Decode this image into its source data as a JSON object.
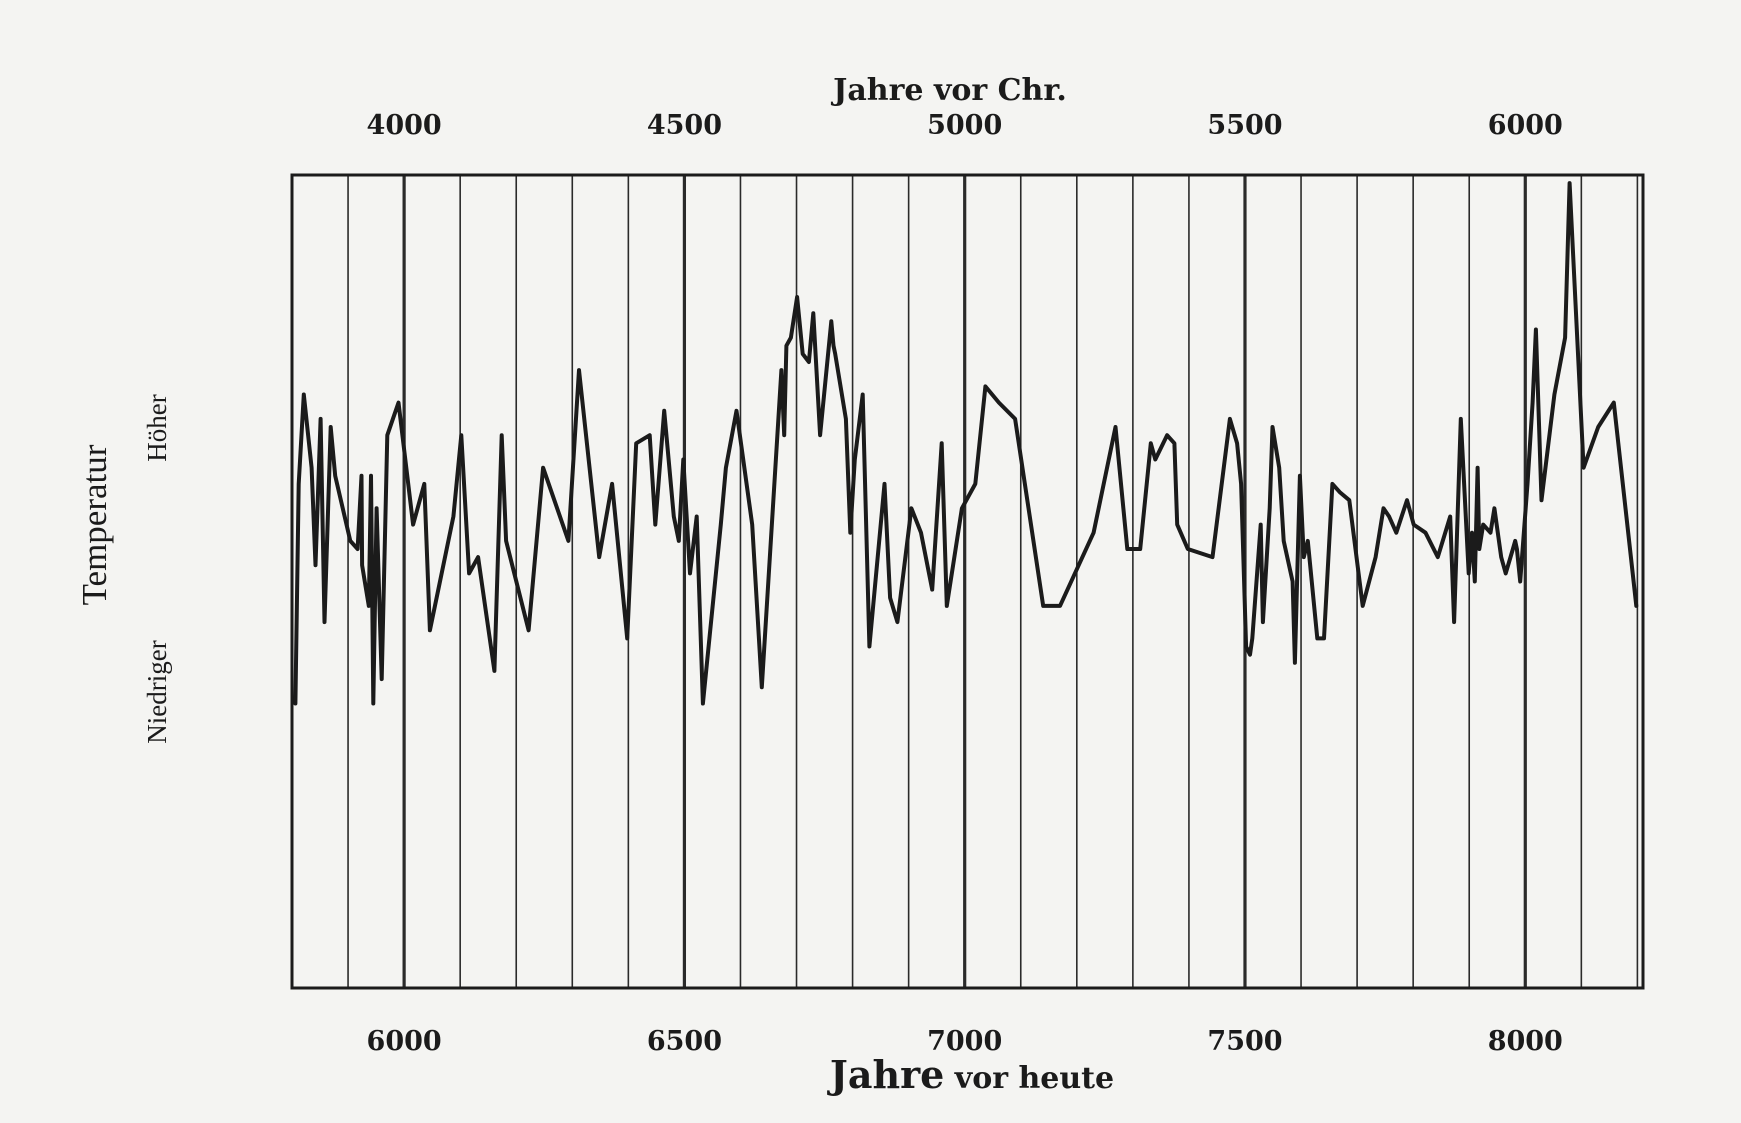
{
  "chart_data": {
    "type": "line",
    "top_axis": {
      "label": "Jahre vor Chr.",
      "ticks": [
        4000,
        4500,
        5000,
        5500,
        6000
      ]
    },
    "bottom_axis": {
      "label_bold": "Jahre",
      "label_rest": " vor heute",
      "ticks": [
        6000,
        6500,
        7000,
        7500,
        8000
      ]
    },
    "y_axis": {
      "label": "Temperatur",
      "low_label": "Niedriger",
      "high_label": "Höher",
      "range": [
        0,
        100
      ]
    },
    "xlim": [
      5800,
      8210
    ],
    "grid": "vertical lines every 100 years, heavier every 500",
    "series": [
      {
        "x": [
          5806,
          5812,
          5821,
          5835,
          5842,
          5851,
          5858,
          5869,
          5877,
          5904,
          5917,
          5924,
          5925,
          5937,
          5941,
          5945,
          5951,
          5960,
          5970,
          5990,
          6016,
          6036,
          6046,
          6088,
          6102,
          6116,
          6132,
          6161,
          6174,
          6182,
          6222,
          6248,
          6293,
          6312,
          6348,
          6371,
          6398,
          6414,
          6438,
          6448,
          6464,
          6481,
          6490,
          6498,
          6510,
          6522,
          6533,
          6565,
          6574,
          6593,
          6621,
          6638,
          6673,
          6678,
          6682,
          6690,
          6701,
          6711,
          6722,
          6730,
          6742,
          6762,
          6766,
          6769,
          6788,
          6796,
          6804,
          6818,
          6830,
          6857,
          6867,
          6880,
          6905,
          6922,
          6942,
          6959,
          6968,
          6995,
          7019,
          7037,
          7061,
          7090,
          7140,
          7170,
          7230,
          7269,
          7290,
          7313,
          7332,
          7340,
          7361,
          7374,
          7379,
          7398,
          7442,
          7473,
          7486,
          7493,
          7502,
          7509,
          7513,
          7528,
          7532,
          7544,
          7549,
          7561,
          7569,
          7585,
          7589,
          7598,
          7605,
          7612,
          7629,
          7641,
          7656,
          7669,
          7686,
          7710,
          7733,
          7747,
          7757,
          7770,
          7789,
          7801,
          7822,
          7844,
          7866,
          7873,
          7885,
          7899,
          7905,
          7910,
          7915,
          7918,
          7925,
          7938,
          7945,
          7957,
          7965,
          7978,
          7982,
          7985,
          7991,
          8004,
          8013,
          8019,
          8029,
          8052,
          8071,
          8079,
          8104,
          8130,
          8158,
          8198
        ],
        "y": [
          35,
          62,
          73,
          64,
          52,
          70,
          45,
          69,
          63,
          55,
          54,
          63,
          52,
          47,
          63,
          35,
          59,
          38,
          68,
          72,
          57,
          62,
          44,
          58,
          68,
          51,
          53,
          39,
          68,
          55,
          44,
          64,
          55,
          76,
          53,
          62,
          43,
          67,
          68,
          57,
          71,
          58,
          55,
          65,
          51,
          58,
          35,
          57,
          64,
          71,
          57,
          37,
          76,
          68,
          79,
          80,
          85,
          78,
          77,
          83,
          68,
          82,
          79,
          78,
          70,
          56,
          65,
          73,
          42,
          62,
          48,
          45,
          59,
          56,
          49,
          67,
          47,
          59,
          62,
          74,
          72,
          70,
          47,
          47,
          56,
          69,
          54,
          54,
          67,
          65,
          68,
          67,
          57,
          54,
          53,
          70,
          67,
          62,
          42,
          41,
          43,
          57,
          45,
          59,
          69,
          64,
          55,
          50,
          40,
          63,
          53,
          55,
          43,
          43,
          62,
          61,
          60,
          47,
          53,
          59,
          58,
          56,
          60,
          57,
          56,
          53,
          58,
          45,
          70,
          51,
          56,
          50,
          64,
          54,
          57,
          56,
          59,
          53,
          51,
          54,
          55,
          54,
          50,
          62,
          72,
          81,
          60,
          73,
          80,
          99,
          64,
          69,
          72,
          47
        ]
      }
    ]
  }
}
